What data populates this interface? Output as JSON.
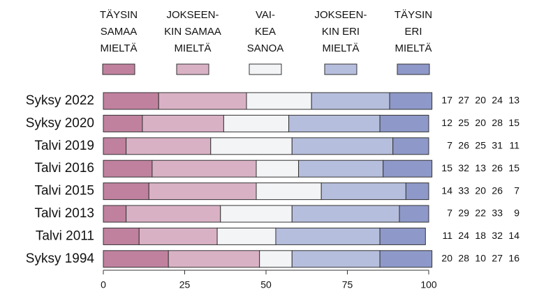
{
  "chart_data": {
    "type": "stacked-barh",
    "categories": [
      "Syksy 2022",
      "Syksy 2020",
      "Talvi 2019",
      "Talvi 2016",
      "Talvi 2015",
      "Talvi 2013",
      "Talvi 2011",
      "Syksy 1994"
    ],
    "series": [
      {
        "name": [
          "TÄYSIN",
          "SAMAA",
          "MIELTÄ"
        ],
        "color": "#c0819f",
        "values": [
          17,
          12,
          7,
          15,
          14,
          7,
          11,
          20
        ]
      },
      {
        "name": [
          "JOKSEEN-",
          "KIN SAMAA",
          "MIELTÄ"
        ],
        "color": "#d9b1c5",
        "values": [
          27,
          25,
          26,
          32,
          33,
          29,
          24,
          28
        ]
      },
      {
        "name": [
          "VAI-",
          "KEA",
          "SANOA"
        ],
        "color": "#f3f4f6",
        "values": [
          20,
          20,
          25,
          13,
          20,
          22,
          18,
          10
        ]
      },
      {
        "name": [
          "JOKSEEN-",
          "KIN ERI",
          "MIELTÄ"
        ],
        "color": "#b6bedd",
        "values": [
          24,
          28,
          31,
          26,
          26,
          33,
          32,
          27
        ]
      },
      {
        "name": [
          "TÄYSIN",
          "ERI",
          "MIELTÄ"
        ],
        "color": "#8e99c9",
        "values": [
          13,
          15,
          11,
          15,
          7,
          9,
          14,
          16
        ]
      }
    ],
    "xlim": [
      0,
      100
    ],
    "xticks": [
      0,
      25,
      50,
      75,
      100
    ]
  }
}
